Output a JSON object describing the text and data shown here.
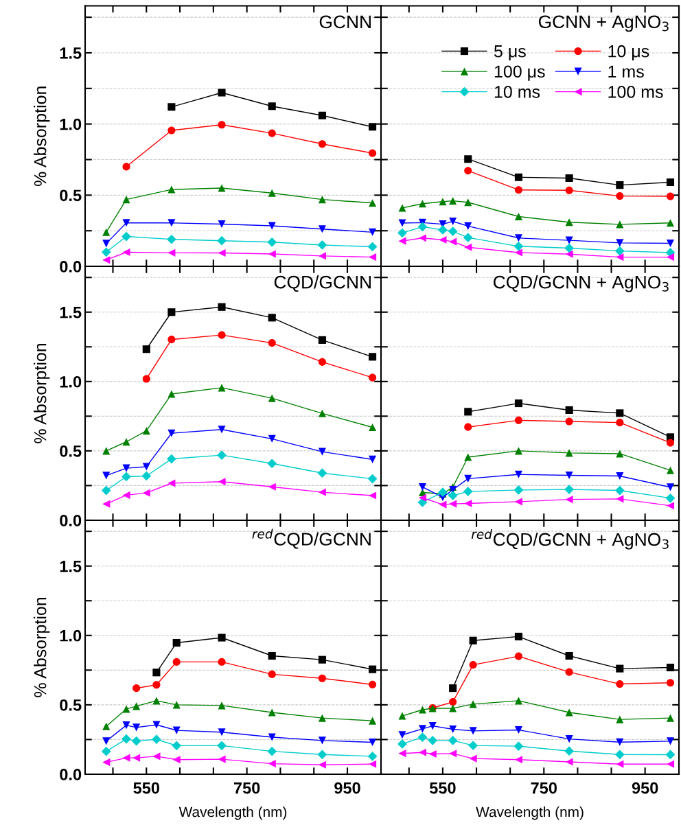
{
  "chart_data": [
    {
      "type": "line",
      "title": "GCNN",
      "ylabel": "% Absorption",
      "xlim": [
        428,
        1017
      ],
      "ylim": [
        0,
        1.83
      ],
      "tick_labels": "y",
      "grid": "y",
      "xticks": [
        {
          "value": 483.33,
          "label": null
        },
        {
          "value": 550,
          "label": null
        },
        {
          "value": 616.67,
          "label": null
        },
        {
          "value": 683.33,
          "label": null
        },
        {
          "value": 750,
          "label": null
        },
        {
          "value": 816.67,
          "label": null
        },
        {
          "value": 883.33,
          "label": null
        },
        {
          "value": 950,
          "label": null
        }
      ],
      "yticks": [
        {
          "value": 0,
          "label": "0.0"
        },
        {
          "value": 0.25,
          "label": null
        },
        {
          "value": 0.5,
          "label": "0.5"
        },
        {
          "value": 0.75,
          "label": null
        },
        {
          "value": 1.0,
          "label": "1.0"
        },
        {
          "value": 1.25,
          "label": null
        },
        {
          "value": 1.5,
          "label": "1.5"
        },
        {
          "value": 1.75,
          "label": null
        }
      ],
      "series": [
        {
          "color": "#000000",
          "marker": "square",
          "x": [
            600,
            700,
            800,
            900,
            1000
          ],
          "values": [
            1.12,
            1.22,
            1.125,
            1.06,
            0.98
          ]
        },
        {
          "color": "#ff0000",
          "marker": "circle",
          "x": [
            510,
            600,
            700,
            800,
            900,
            1000
          ],
          "values": [
            0.7,
            0.955,
            0.995,
            0.935,
            0.86,
            0.795
          ]
        },
        {
          "color": "#008000",
          "marker": "triangle",
          "x": [
            470,
            510,
            600,
            700,
            800,
            900,
            1000
          ],
          "values": [
            0.24,
            0.47,
            0.54,
            0.55,
            0.515,
            0.47,
            0.445
          ]
        },
        {
          "color": "#0000ff",
          "marker": "triangle_down",
          "x": [
            470,
            510,
            600,
            700,
            800,
            900,
            1000
          ],
          "values": [
            0.16,
            0.305,
            0.305,
            0.297,
            0.285,
            0.262,
            0.24
          ]
        },
        {
          "color": "#00cccc",
          "marker": "diamond",
          "x": [
            470,
            510,
            600,
            700,
            800,
            900,
            1000
          ],
          "values": [
            0.1,
            0.21,
            0.19,
            0.18,
            0.17,
            0.15,
            0.138
          ]
        },
        {
          "color": "#ff00ff",
          "marker": "triangle_left",
          "x": [
            470,
            510,
            600,
            700,
            800,
            900,
            1000
          ],
          "values": [
            0.045,
            0.099,
            0.095,
            0.094,
            0.087,
            0.073,
            0.065
          ]
        }
      ]
    },
    {
      "type": "line",
      "title": "GCNN + AgNO$_{3}$",
      "xlim": [
        428,
        1017
      ],
      "ylim": [
        0,
        1.83
      ],
      "tick_labels": false,
      "grid": "y",
      "legend": "top right",
      "xticks": [
        {
          "value": 483.33,
          "label": null
        },
        {
          "value": 550,
          "label": null
        },
        {
          "value": 616.67,
          "label": null
        },
        {
          "value": 683.33,
          "label": null
        },
        {
          "value": 750,
          "label": null
        },
        {
          "value": 816.67,
          "label": null
        },
        {
          "value": 883.33,
          "label": null
        },
        {
          "value": 950,
          "label": null
        }
      ],
      "yticks": [
        {
          "value": 0,
          "label": null
        },
        {
          "value": 0.25,
          "label": null
        },
        {
          "value": 0.5,
          "label": null
        },
        {
          "value": 0.75,
          "label": null
        },
        {
          "value": 1.0,
          "label": null
        },
        {
          "value": 1.25,
          "label": null
        },
        {
          "value": 1.5,
          "label": null
        },
        {
          "value": 1.75,
          "label": null
        }
      ],
      "series": [
        {
          "name": "5 μs",
          "color": "#000000",
          "marker": "square",
          "x": [
            600,
            700,
            800,
            900,
            1000
          ],
          "values": [
            0.754,
            0.626,
            0.62,
            0.571,
            0.591
          ]
        },
        {
          "name": "10 μs",
          "color": "#ff0000",
          "marker": "circle",
          "x": [
            600,
            700,
            800,
            900,
            1000
          ],
          "values": [
            0.672,
            0.537,
            0.534,
            0.494,
            0.492
          ]
        },
        {
          "name": "100 μs",
          "color": "#008000",
          "marker": "triangle",
          "x": [
            470,
            510,
            550,
            570,
            600,
            700,
            800,
            900,
            1000
          ],
          "values": [
            0.41,
            0.44,
            0.455,
            0.46,
            0.45,
            0.35,
            0.31,
            0.295,
            0.305
          ]
        },
        {
          "name": "1 ms",
          "color": "#0000ff",
          "marker": "triangle_down",
          "x": [
            470,
            510,
            550,
            570,
            600,
            700,
            800,
            900,
            1000
          ],
          "values": [
            0.304,
            0.307,
            0.296,
            0.316,
            0.283,
            0.199,
            0.183,
            0.165,
            0.162
          ]
        },
        {
          "name": "10 ms",
          "color": "#00cccc",
          "marker": "diamond",
          "x": [
            470,
            510,
            550,
            570,
            600,
            700,
            800,
            900,
            1000
          ],
          "values": [
            0.235,
            0.278,
            0.256,
            0.246,
            0.202,
            0.141,
            0.128,
            0.108,
            0.097
          ]
        },
        {
          "name": "100 ms",
          "color": "#ff00ff",
          "marker": "triangle_left",
          "x": [
            470,
            510,
            550,
            570,
            600,
            700,
            800,
            900,
            1000
          ],
          "values": [
            0.178,
            0.199,
            0.186,
            0.173,
            0.134,
            0.097,
            0.086,
            0.065,
            0.065
          ]
        }
      ]
    },
    {
      "type": "line",
      "title": "CQD/GCNN",
      "ylabel": "% Absorption",
      "xlim": [
        428,
        1017
      ],
      "ylim": [
        0,
        1.83
      ],
      "tick_labels": "y",
      "grid": "y",
      "xticks": [
        {
          "value": 483.33,
          "label": null
        },
        {
          "value": 550,
          "label": null
        },
        {
          "value": 616.67,
          "label": null
        },
        {
          "value": 683.33,
          "label": null
        },
        {
          "value": 750,
          "label": null
        },
        {
          "value": 816.67,
          "label": null
        },
        {
          "value": 883.33,
          "label": null
        },
        {
          "value": 950,
          "label": null
        }
      ],
      "yticks": [
        {
          "value": 0,
          "label": "0.0"
        },
        {
          "value": 0.25,
          "label": null
        },
        {
          "value": 0.5,
          "label": "0.5"
        },
        {
          "value": 0.75,
          "label": null
        },
        {
          "value": 1.0,
          "label": "1.0"
        },
        {
          "value": 1.25,
          "label": null
        },
        {
          "value": 1.5,
          "label": "1.5"
        },
        {
          "value": 1.75,
          "label": null
        }
      ],
      "series": [
        {
          "color": "#000000",
          "marker": "square",
          "x": [
            550,
            600,
            700,
            800,
            900,
            1000
          ],
          "values": [
            1.233,
            1.5,
            1.537,
            1.46,
            1.299,
            1.178
          ]
        },
        {
          "color": "#ff0000",
          "marker": "circle",
          "x": [
            550,
            600,
            700,
            800,
            900,
            1000
          ],
          "values": [
            1.019,
            1.303,
            1.335,
            1.278,
            1.141,
            1.028
          ]
        },
        {
          "color": "#008000",
          "marker": "triangle",
          "x": [
            470,
            510,
            550,
            600,
            700,
            800,
            900,
            1000
          ],
          "values": [
            0.5,
            0.565,
            0.645,
            0.91,
            0.955,
            0.88,
            0.77,
            0.67
          ]
        },
        {
          "color": "#0000ff",
          "marker": "triangle_down",
          "x": [
            470,
            510,
            550,
            600,
            700,
            800,
            900,
            1000
          ],
          "values": [
            0.322,
            0.375,
            0.386,
            0.627,
            0.654,
            0.587,
            0.494,
            0.438
          ]
        },
        {
          "color": "#00cccc",
          "marker": "diamond",
          "x": [
            470,
            510,
            550,
            600,
            700,
            800,
            900,
            1000
          ],
          "values": [
            0.215,
            0.314,
            0.319,
            0.442,
            0.469,
            0.409,
            0.34,
            0.299
          ]
        },
        {
          "color": "#ff00ff",
          "marker": "triangle_left",
          "x": [
            470,
            510,
            550,
            600,
            700,
            800,
            900,
            1000
          ],
          "values": [
            0.117,
            0.181,
            0.197,
            0.267,
            0.278,
            0.241,
            0.202,
            0.178
          ]
        }
      ]
    },
    {
      "type": "line",
      "title": "CQD/GCNN + AgNO$_{3}$",
      "xlim": [
        428,
        1017
      ],
      "ylim": [
        0,
        1.83
      ],
      "tick_labels": false,
      "grid": "y",
      "xticks": [
        {
          "value": 483.33,
          "label": null
        },
        {
          "value": 550,
          "label": null
        },
        {
          "value": 616.67,
          "label": null
        },
        {
          "value": 683.33,
          "label": null
        },
        {
          "value": 750,
          "label": null
        },
        {
          "value": 816.67,
          "label": null
        },
        {
          "value": 883.33,
          "label": null
        },
        {
          "value": 950,
          "label": null
        }
      ],
      "yticks": [
        {
          "value": 0,
          "label": null
        },
        {
          "value": 0.25,
          "label": null
        },
        {
          "value": 0.5,
          "label": null
        },
        {
          "value": 0.75,
          "label": null
        },
        {
          "value": 1.0,
          "label": null
        },
        {
          "value": 1.25,
          "label": null
        },
        {
          "value": 1.5,
          "label": null
        },
        {
          "value": 1.75,
          "label": null
        }
      ],
      "series": [
        {
          "color": "#000000",
          "marker": "square",
          "x": [
            600,
            700,
            800,
            900,
            1000
          ],
          "values": [
            0.782,
            0.843,
            0.794,
            0.772,
            0.599
          ]
        },
        {
          "color": "#ff0000",
          "marker": "circle",
          "x": [
            600,
            700,
            800,
            900,
            1000
          ],
          "values": [
            0.672,
            0.72,
            0.712,
            0.704,
            0.558
          ]
        },
        {
          "color": "#008000",
          "marker": "triangle",
          "x": [
            510,
            550,
            570,
            600,
            700,
            800,
            900,
            1000
          ],
          "values": [
            0.2,
            0.19,
            0.24,
            0.455,
            0.5,
            0.485,
            0.48,
            0.36
          ]
        },
        {
          "color": "#0000ff",
          "marker": "triangle_down",
          "x": [
            510,
            550,
            570,
            600,
            700,
            800,
            900,
            1000
          ],
          "values": [
            0.24,
            0.165,
            0.22,
            0.3,
            0.33,
            0.324,
            0.319,
            0.238
          ]
        },
        {
          "color": "#00cccc",
          "marker": "diamond",
          "x": [
            510,
            550,
            570,
            600,
            700,
            800,
            900,
            1000
          ],
          "values": [
            0.129,
            0.202,
            0.178,
            0.207,
            0.218,
            0.222,
            0.215,
            0.159
          ]
        },
        {
          "color": "#ff00ff",
          "marker": "triangle_left",
          "x": [
            510,
            550,
            570,
            600,
            700,
            800,
            900,
            1000
          ],
          "values": [
            0.162,
            0.113,
            0.118,
            0.121,
            0.134,
            0.15,
            0.154,
            0.105
          ]
        }
      ]
    },
    {
      "type": "line",
      "title": "$^{red}$CQD/GCNN",
      "xlabel": "Wavelength (nm)",
      "ylabel": "% Absorption",
      "xlim": [
        428,
        1017
      ],
      "ylim": [
        0,
        1.83
      ],
      "grid": "y",
      "xticks": [
        {
          "value": 483.33,
          "label": null
        },
        550,
        {
          "value": 616.67,
          "label": null
        },
        {
          "value": 683.33,
          "label": null
        },
        750,
        {
          "value": 816.67,
          "label": null
        },
        {
          "value": 883.33,
          "label": null
        },
        950
      ],
      "yticks": [
        {
          "value": 0,
          "label": "0.0"
        },
        {
          "value": 0.25,
          "label": null
        },
        {
          "value": 0.5,
          "label": "0.5"
        },
        {
          "value": 0.75,
          "label": null
        },
        {
          "value": 1.0,
          "label": "1.0"
        },
        {
          "value": 1.25,
          "label": null
        },
        {
          "value": 1.5,
          "label": "1.5"
        },
        {
          "value": 1.75,
          "label": null
        }
      ],
      "series": [
        {
          "color": "#000000",
          "marker": "square",
          "x": [
            570,
            610,
            700,
            800,
            900,
            1000
          ],
          "values": [
            0.733,
            0.947,
            0.984,
            0.853,
            0.825,
            0.756
          ]
        },
        {
          "color": "#ff0000",
          "marker": "circle",
          "x": [
            530,
            570,
            610,
            700,
            800,
            900,
            1000
          ],
          "values": [
            0.62,
            0.644,
            0.809,
            0.809,
            0.72,
            0.691,
            0.646
          ]
        },
        {
          "color": "#008000",
          "marker": "triangle",
          "x": [
            470,
            510,
            530,
            570,
            610,
            700,
            800,
            900,
            1000
          ],
          "values": [
            0.345,
            0.47,
            0.49,
            0.53,
            0.5,
            0.495,
            0.445,
            0.405,
            0.385
          ]
        },
        {
          "color": "#0000ff",
          "marker": "triangle_down",
          "x": [
            470,
            510,
            530,
            570,
            610,
            700,
            800,
            900,
            1000
          ],
          "values": [
            0.238,
            0.353,
            0.337,
            0.356,
            0.316,
            0.303,
            0.267,
            0.243,
            0.23
          ]
        },
        {
          "color": "#00cccc",
          "marker": "diamond",
          "x": [
            470,
            510,
            530,
            570,
            610,
            700,
            800,
            900,
            1000
          ],
          "values": [
            0.165,
            0.254,
            0.239,
            0.251,
            0.206,
            0.206,
            0.165,
            0.142,
            0.129
          ]
        },
        {
          "color": "#ff00ff",
          "marker": "triangle_left",
          "x": [
            470,
            510,
            530,
            570,
            610,
            700,
            800,
            900,
            1000
          ],
          "values": [
            0.086,
            0.118,
            0.118,
            0.129,
            0.105,
            0.108,
            0.076,
            0.068,
            0.073
          ]
        }
      ]
    },
    {
      "type": "line",
      "title": "$^{red}$CQD/GCNN + AgNO$_{3}$",
      "xlabel": "Wavelength (nm)",
      "xlim": [
        428,
        1017
      ],
      "ylim": [
        0,
        1.83
      ],
      "tick_labels": "x",
      "grid": "y",
      "xticks": [
        {
          "value": 483.33,
          "label": null
        },
        550,
        {
          "value": 616.67,
          "label": null
        },
        {
          "value": 683.33,
          "label": null
        },
        750,
        {
          "value": 816.67,
          "label": null
        },
        {
          "value": 883.33,
          "label": null
        },
        950
      ],
      "yticks": [
        {
          "value": 0,
          "label": null
        },
        {
          "value": 0.25,
          "label": null
        },
        {
          "value": 0.5,
          "label": null
        },
        {
          "value": 0.75,
          "label": null
        },
        {
          "value": 1.0,
          "label": null
        },
        {
          "value": 1.25,
          "label": null
        },
        {
          "value": 1.5,
          "label": null
        },
        {
          "value": 1.75,
          "label": null
        }
      ],
      "series": [
        {
          "color": "#000000",
          "marker": "square",
          "x": [
            570,
            610,
            700,
            800,
            900,
            1000
          ],
          "values": [
            0.62,
            0.963,
            0.992,
            0.853,
            0.761,
            0.769
          ]
        },
        {
          "color": "#ff0000",
          "marker": "circle",
          "x": [
            530,
            570,
            610,
            700,
            800,
            900,
            1000
          ],
          "values": [
            0.477,
            0.521,
            0.788,
            0.85,
            0.736,
            0.65,
            0.659
          ]
        },
        {
          "color": "#008000",
          "marker": "triangle",
          "x": [
            470,
            510,
            530,
            570,
            610,
            700,
            800,
            900,
            1000
          ],
          "values": [
            0.42,
            0.465,
            0.475,
            0.475,
            0.505,
            0.53,
            0.445,
            0.395,
            0.405
          ]
        },
        {
          "color": "#0000ff",
          "marker": "triangle_down",
          "x": [
            470,
            510,
            530,
            570,
            610,
            700,
            800,
            900,
            1000
          ],
          "values": [
            0.283,
            0.327,
            0.348,
            0.324,
            0.312,
            0.319,
            0.254,
            0.231,
            0.238
          ]
        },
        {
          "color": "#00cccc",
          "marker": "diamond",
          "x": [
            470,
            510,
            530,
            570,
            610,
            700,
            800,
            900,
            1000
          ],
          "values": [
            0.218,
            0.267,
            0.243,
            0.243,
            0.207,
            0.202,
            0.167,
            0.142,
            0.141
          ]
        },
        {
          "color": "#ff00ff",
          "marker": "triangle_left",
          "x": [
            470,
            510,
            530,
            570,
            610,
            700,
            800,
            900,
            1000
          ],
          "values": [
            0.15,
            0.157,
            0.146,
            0.149,
            0.113,
            0.105,
            0.089,
            0.073,
            0.073
          ]
        }
      ]
    }
  ]
}
